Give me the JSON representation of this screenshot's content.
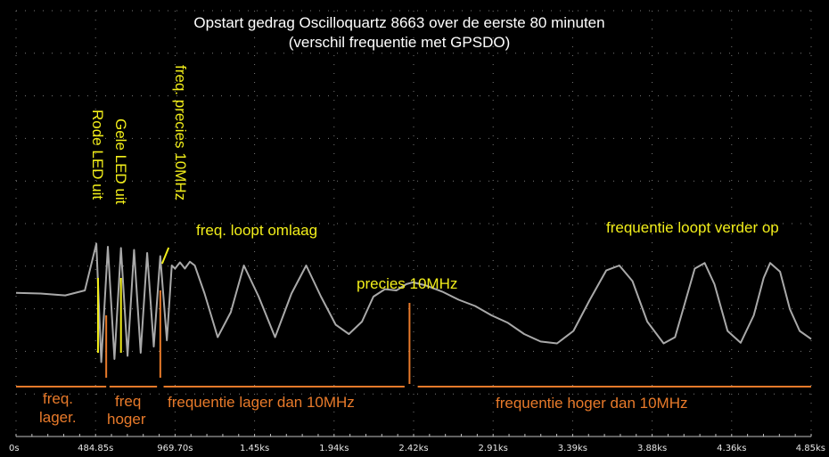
{
  "chart_data": {
    "type": "line",
    "title": "Opstart gedrag Oscilloquartz 8663 over de eerste 80 minuten",
    "subtitle": "(verschil frequentie met GPSDO)",
    "xlabel": "",
    "ylabel": "",
    "x_unit": "ks",
    "xlim": [
      0,
      4.85
    ],
    "ylim": [
      -1,
      1
    ],
    "grid": true,
    "x_tick_labels": [
      "0s",
      "484.85s",
      "969.70s",
      "1.45ks",
      "1.94ks",
      "2.42ks",
      "2.91ks",
      "3.39ks",
      "3.88ks",
      "4.36ks",
      "4.85ks"
    ],
    "series": [
      {
        "x": [
          0,
          0.15,
          0.3,
          0.42,
          0.49,
          0.52,
          0.56,
          0.6,
          0.64,
          0.68,
          0.72,
          0.76,
          0.8,
          0.84,
          0.88,
          0.92,
          0.95,
          0.97,
          1.0,
          1.03,
          1.06,
          1.09,
          1.15,
          1.23,
          1.31,
          1.39,
          1.48,
          1.58,
          1.68,
          1.77,
          1.86,
          1.95,
          2.03,
          2.11,
          2.18,
          2.25,
          2.32,
          2.38,
          2.42,
          2.5,
          2.6,
          2.7,
          2.8,
          2.9,
          3.0,
          3.1,
          3.2,
          3.3,
          3.4,
          3.5,
          3.6,
          3.68,
          3.76,
          3.85,
          3.95,
          4.02,
          4.08,
          4.14,
          4.2,
          4.26,
          4.34,
          4.42,
          4.5,
          4.56,
          4.6,
          4.66,
          4.72,
          4.78,
          4.85
        ],
        "y": [
          0.16,
          0.15,
          0.12,
          0.2,
          0.95,
          -0.95,
          0.9,
          -0.9,
          0.88,
          -0.85,
          0.85,
          -0.8,
          0.8,
          -0.7,
          0.75,
          -0.6,
          0.6,
          0.55,
          0.65,
          0.55,
          0.66,
          0.6,
          0.15,
          -0.55,
          -0.15,
          0.6,
          0.1,
          -0.55,
          0.15,
          0.6,
          0.1,
          -0.35,
          -0.5,
          -0.3,
          0.1,
          0.22,
          0.2,
          0.3,
          0.33,
          0.28,
          0.18,
          0.05,
          -0.05,
          -0.2,
          -0.32,
          -0.5,
          -0.62,
          -0.65,
          -0.45,
          0.05,
          0.52,
          0.6,
          0.35,
          -0.3,
          -0.65,
          -0.55,
          0.0,
          0.55,
          0.64,
          0.3,
          -0.45,
          -0.64,
          -0.2,
          0.4,
          0.64,
          0.5,
          -0.1,
          -0.45,
          -0.58
        ]
      }
    ],
    "vlines": [
      {
        "x": 0.5,
        "color": "#f2ee1a",
        "y_from": 0.4,
        "y_to": -0.8
      },
      {
        "x": 0.64,
        "color": "#f2ee1a",
        "y_from": 0.4,
        "y_to": -0.8
      },
      {
        "x": 0.55,
        "color": "#e87a2a",
        "y_from": -0.2,
        "y_to": -1.2
      },
      {
        "x": 0.88,
        "color": "#e87a2a",
        "y_from": 0.2,
        "y_to": -1.2
      },
      {
        "x": 2.4,
        "color": "#e87a2a",
        "y_from": 0.0,
        "y_to": -1.3
      }
    ],
    "annotations": {
      "rode_led": "Rode LED uit",
      "gele_led": "Gele LED uit",
      "freq_precies": "freq. precies 10MHz",
      "freq_omlaag": "freq. loopt omlaag",
      "precies_10mhz": "precies 10MHz",
      "freq_verder_op": "frequentie loopt verder op",
      "freq_lager_1": "freq.",
      "freq_lager_2": "lager.",
      "freq_hoger_1": "freq",
      "freq_hoger_2": "hoger",
      "freq_lager_dan": "frequentie lager dan 10MHz",
      "freq_hoger_dan": "frequentie hoger dan 10MHz"
    },
    "colors": {
      "background": "#000000",
      "trace": "#a9a9a9",
      "grid_dots": "#7a7a7a",
      "annotation_yellow": "#f2ee1a",
      "annotation_orange": "#e87a2a",
      "text": "#ffffff"
    }
  }
}
